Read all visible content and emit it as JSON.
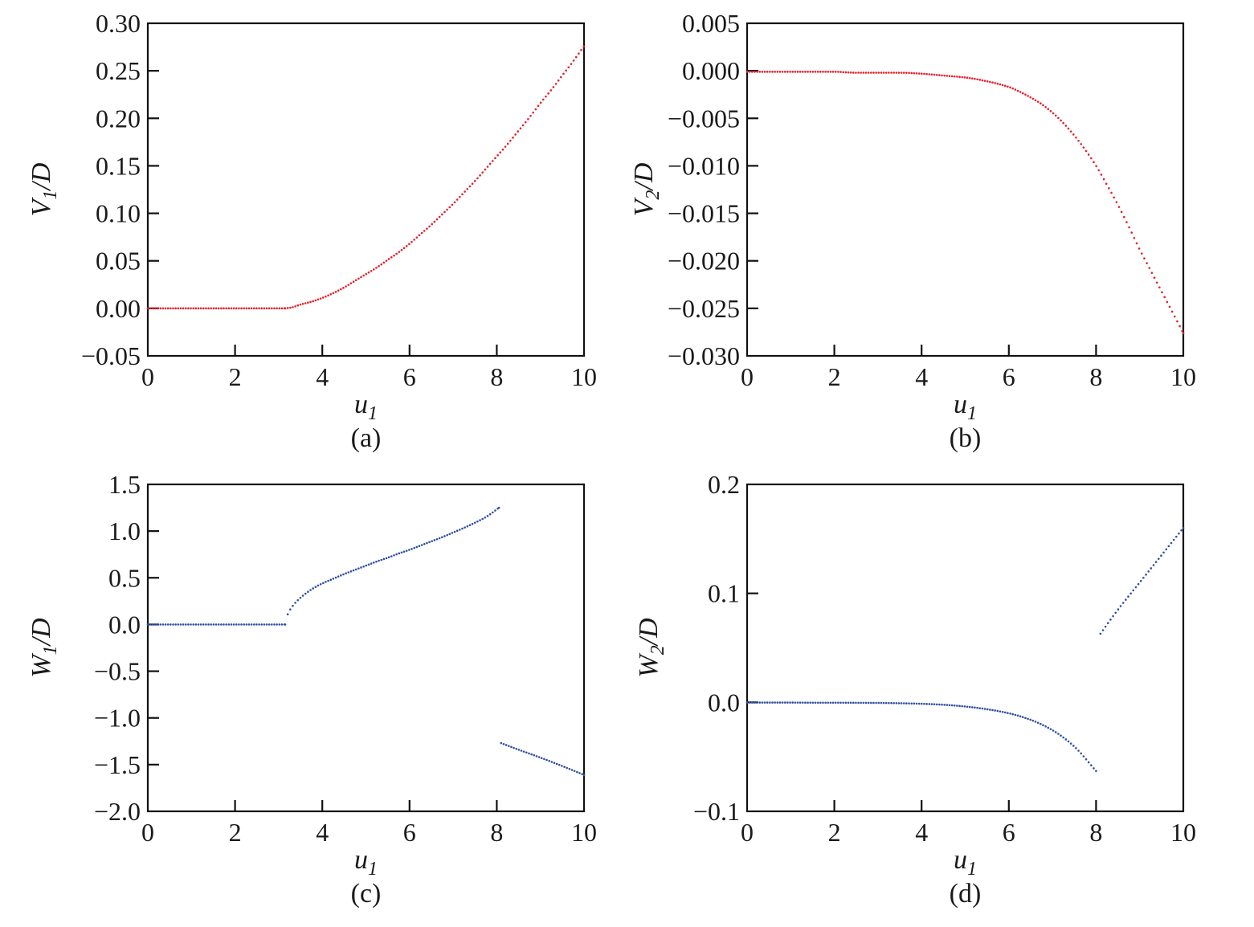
{
  "figure": {
    "background": "#ffffff",
    "description": "Four-panel figure of dotted curves versus u1",
    "panel_order": [
      "a",
      "b",
      "c",
      "d"
    ]
  },
  "chart_data": [
    {
      "id": "a",
      "type": "scatter",
      "caption": "(a)",
      "xlabel": {
        "base": "u",
        "sub": "1"
      },
      "ylabel": {
        "base": "V",
        "sub": "1",
        "rest": "/D"
      },
      "xlim": [
        0,
        10
      ],
      "ylim": [
        -0.05,
        0.3
      ],
      "xtick_values": [
        0,
        2,
        4,
        6,
        8,
        10
      ],
      "xtick_labels": [
        "0",
        "2",
        "4",
        "6",
        "8",
        "10"
      ],
      "ytick_values": [
        0.3,
        0.25,
        0.2,
        0.15,
        0.1,
        0.05,
        0.0,
        -0.05
      ],
      "ytick_labels": [
        "0.30",
        "0.25",
        "0.20",
        "0.15",
        "0.10",
        "0.05",
        "0.00",
        "−0.05"
      ],
      "grid": false,
      "legend": null,
      "marker": "dot",
      "point_spacing_u": 0.058,
      "color": "#e2222b",
      "segments": [
        [
          [
            0,
            0
          ],
          [
            1,
            0
          ],
          [
            2,
            0
          ],
          [
            3,
            0
          ],
          [
            3.15,
            0
          ]
        ],
        [
          [
            3.15,
            0
          ],
          [
            3.3,
            0.001
          ],
          [
            3.5,
            0.004
          ],
          [
            3.75,
            0.007
          ],
          [
            4,
            0.011
          ],
          [
            4.25,
            0.016
          ],
          [
            4.5,
            0.022
          ],
          [
            4.75,
            0.029
          ],
          [
            5,
            0.036
          ],
          [
            5.25,
            0.043
          ],
          [
            5.5,
            0.051
          ],
          [
            5.75,
            0.059
          ],
          [
            6,
            0.068
          ],
          [
            6.25,
            0.078
          ],
          [
            6.5,
            0.088
          ],
          [
            6.75,
            0.099
          ],
          [
            7,
            0.11
          ],
          [
            7.25,
            0.122
          ],
          [
            7.5,
            0.134
          ],
          [
            7.75,
            0.147
          ],
          [
            8,
            0.16
          ],
          [
            8.25,
            0.173
          ],
          [
            8.5,
            0.187
          ],
          [
            8.75,
            0.201
          ],
          [
            9,
            0.216
          ],
          [
            9.25,
            0.23
          ],
          [
            9.5,
            0.245
          ],
          [
            9.75,
            0.26
          ],
          [
            10,
            0.276
          ]
        ]
      ]
    },
    {
      "id": "b",
      "type": "scatter",
      "caption": "(b)",
      "xlabel": {
        "base": "u",
        "sub": "1"
      },
      "ylabel": {
        "base": "V",
        "sub": "2",
        "rest": "/D"
      },
      "xlim": [
        0,
        10
      ],
      "ylim": [
        -0.03,
        0.005
      ],
      "xtick_values": [
        0,
        2,
        4,
        6,
        8,
        10
      ],
      "xtick_labels": [
        "0",
        "2",
        "4",
        "6",
        "8",
        "10"
      ],
      "ytick_values": [
        0.005,
        0.0,
        -0.005,
        -0.01,
        -0.015,
        -0.02,
        -0.025,
        -0.03
      ],
      "ytick_labels": [
        "0.005",
        "0.000",
        "−0.005",
        "−0.010",
        "−0.015",
        "−0.020",
        "−0.025",
        "−0.030"
      ],
      "grid": false,
      "legend": null,
      "marker": "dot",
      "point_spacing_u": 0.058,
      "color": "#e2222b",
      "segments": [
        [
          [
            0,
            -0.0001
          ],
          [
            0.5,
            -0.0001
          ],
          [
            1,
            -0.0001
          ],
          [
            1.5,
            -0.0001
          ],
          [
            2,
            -0.0001
          ],
          [
            2.5,
            -0.0002
          ],
          [
            3,
            -0.0002
          ],
          [
            3.5,
            -0.0002
          ],
          [
            4,
            -0.0003
          ],
          [
            4.5,
            -0.0005
          ],
          [
            5,
            -0.0007
          ],
          [
            5.5,
            -0.0011
          ],
          [
            6,
            -0.0017
          ],
          [
            6.25,
            -0.0022
          ],
          [
            6.5,
            -0.0028
          ],
          [
            6.75,
            -0.0035
          ],
          [
            7,
            -0.0044
          ],
          [
            7.25,
            -0.0055
          ],
          [
            7.5,
            -0.0068
          ],
          [
            7.75,
            -0.0083
          ],
          [
            8,
            -0.01
          ],
          [
            8.25,
            -0.012
          ],
          [
            8.5,
            -0.0141
          ],
          [
            8.75,
            -0.0164
          ],
          [
            9,
            -0.0188
          ],
          [
            9.25,
            -0.021
          ],
          [
            9.5,
            -0.0232
          ],
          [
            9.75,
            -0.0254
          ],
          [
            10,
            -0.0276
          ]
        ]
      ]
    },
    {
      "id": "c",
      "type": "scatter",
      "caption": "(c)",
      "xlabel": {
        "base": "u",
        "sub": "1"
      },
      "ylabel": {
        "base": "W",
        "sub": "1",
        "rest": "/D"
      },
      "xlim": [
        0,
        10
      ],
      "ylim": [
        -2.0,
        1.5
      ],
      "xtick_values": [
        0,
        2,
        4,
        6,
        8,
        10
      ],
      "xtick_labels": [
        "0",
        "2",
        "4",
        "6",
        "8",
        "10"
      ],
      "ytick_values": [
        1.5,
        1.0,
        0.5,
        0.0,
        -0.5,
        -1.0,
        -1.5,
        -2.0
      ],
      "ytick_labels": [
        "1.5",
        "1.0",
        "0.5",
        "0.0",
        "−0.5",
        "−1.0",
        "−1.5",
        "−2.0"
      ],
      "grid": false,
      "legend": null,
      "marker": "dot",
      "point_spacing_u": 0.058,
      "color": "#3150a2",
      "segments": [
        [
          [
            0,
            0
          ],
          [
            1,
            0
          ],
          [
            2,
            0
          ],
          [
            3,
            0
          ],
          [
            3.15,
            0
          ]
        ],
        [
          [
            3.15,
            0
          ],
          [
            3.2,
            0.1
          ],
          [
            3.3,
            0.185
          ],
          [
            3.45,
            0.265
          ],
          [
            3.6,
            0.325
          ],
          [
            3.8,
            0.39
          ],
          [
            4,
            0.44
          ],
          [
            4.25,
            0.49
          ],
          [
            4.5,
            0.54
          ],
          [
            4.75,
            0.585
          ],
          [
            5,
            0.63
          ],
          [
            5.25,
            0.675
          ],
          [
            5.5,
            0.715
          ],
          [
            5.75,
            0.76
          ],
          [
            6,
            0.8
          ],
          [
            6.25,
            0.845
          ],
          [
            6.5,
            0.89
          ],
          [
            6.75,
            0.935
          ],
          [
            7,
            0.985
          ],
          [
            7.25,
            1.035
          ],
          [
            7.5,
            1.09
          ],
          [
            7.75,
            1.15
          ],
          [
            8.05,
            1.25
          ]
        ],
        [
          [
            8.1,
            -1.27
          ],
          [
            8.5,
            -1.34
          ],
          [
            9,
            -1.425
          ],
          [
            9.5,
            -1.515
          ],
          [
            10,
            -1.61
          ]
        ]
      ]
    },
    {
      "id": "d",
      "type": "scatter",
      "caption": "(d)",
      "xlabel": {
        "base": "u",
        "sub": "1"
      },
      "ylabel": {
        "base": "W",
        "sub": "2",
        "rest": "/D"
      },
      "xlim": [
        0,
        10
      ],
      "ylim": [
        -0.1,
        0.2
      ],
      "xtick_values": [
        0,
        2,
        4,
        6,
        8,
        10
      ],
      "xtick_labels": [
        "0",
        "2",
        "4",
        "6",
        "8",
        "10"
      ],
      "ytick_values": [
        0.2,
        0.1,
        0.0,
        -0.1
      ],
      "ytick_labels": [
        "0.2",
        "0.1",
        "0.0",
        "−0.1"
      ],
      "grid": false,
      "legend": null,
      "marker": "dot",
      "point_spacing_u": 0.058,
      "color": "#3150a2",
      "segments": [
        [
          [
            0,
            -0.0002
          ],
          [
            0.5,
            -0.0002
          ],
          [
            1,
            -0.0002
          ],
          [
            1.5,
            -0.0003
          ],
          [
            2,
            -0.0003
          ],
          [
            2.5,
            -0.0004
          ],
          [
            3,
            -0.0005
          ],
          [
            3.5,
            -0.0008
          ],
          [
            4,
            -0.0013
          ],
          [
            4.5,
            -0.0022
          ],
          [
            5,
            -0.0038
          ],
          [
            5.5,
            -0.0063
          ],
          [
            6,
            -0.01
          ],
          [
            6.5,
            -0.016
          ],
          [
            7,
            -0.0255
          ],
          [
            7.5,
            -0.0405
          ],
          [
            8,
            -0.063
          ]
        ],
        [
          [
            8.1,
            0.063
          ],
          [
            8.5,
            0.085
          ],
          [
            9,
            0.11
          ],
          [
            9.5,
            0.135
          ],
          [
            10,
            0.16
          ]
        ]
      ]
    }
  ]
}
